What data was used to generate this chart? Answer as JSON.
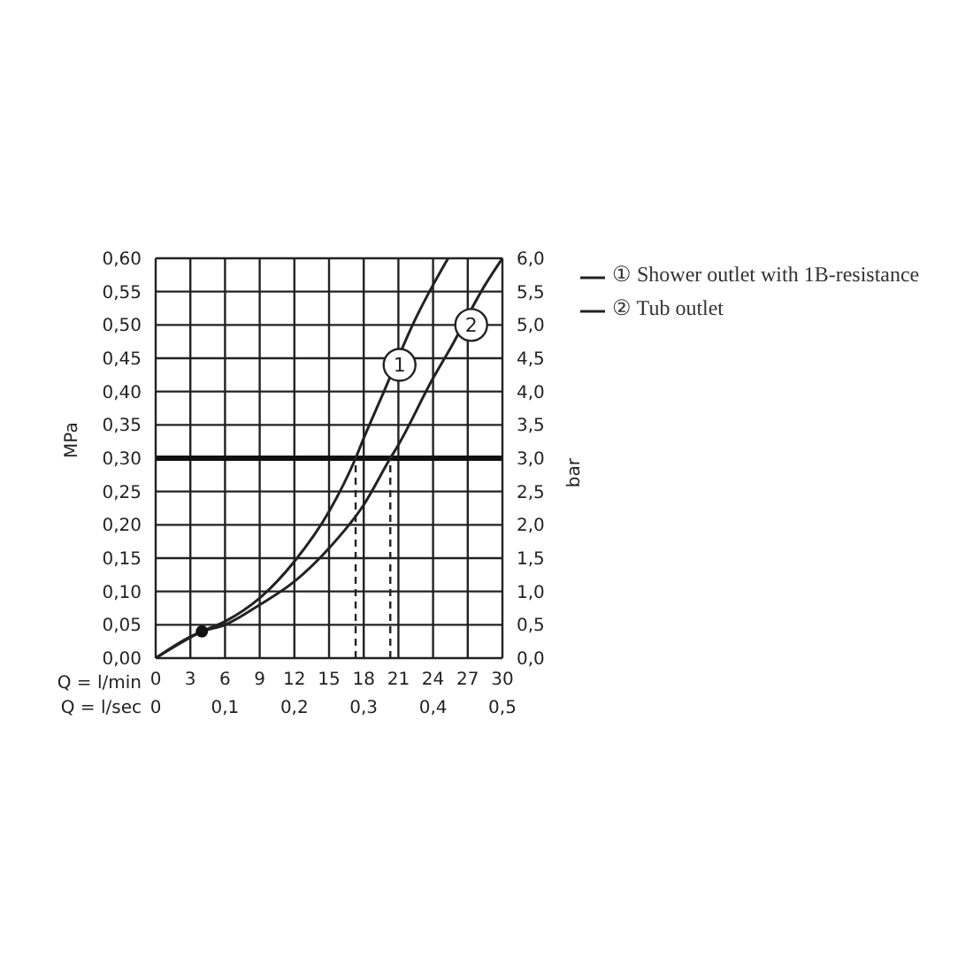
{
  "chart_data": {
    "type": "line",
    "xlabel": "Q = l/min",
    "ylabel": "MPa",
    "y2label": "bar",
    "x2label": "Q = l/sec",
    "xlim": [
      0,
      30
    ],
    "xticks": [
      0,
      3,
      6,
      9,
      12,
      15,
      18,
      21,
      24,
      27,
      30
    ],
    "x2lim": [
      0,
      0.5
    ],
    "x2ticks": [
      0,
      {
        "value": 0.1,
        "label": "0,1"
      },
      {
        "value": 0.2,
        "label": "0,2"
      },
      {
        "value": 0.3,
        "label": "0,3"
      },
      {
        "value": 0.4,
        "label": "0,4"
      },
      {
        "value": 0.5,
        "label": "0,5"
      }
    ],
    "ylim": [
      0,
      0.6
    ],
    "yticks": [
      {
        "value": 0,
        "label": "0,00"
      },
      {
        "value": 0.05,
        "label": "0,05"
      },
      {
        "value": 0.1,
        "label": "0,10"
      },
      {
        "value": 0.15,
        "label": "0,15"
      },
      {
        "value": 0.2,
        "label": "0,20"
      },
      {
        "value": 0.25,
        "label": "0,25"
      },
      {
        "value": 0.3,
        "label": "0,30"
      },
      {
        "value": 0.35,
        "label": "0,35"
      },
      {
        "value": 0.4,
        "label": "0,40"
      },
      {
        "value": 0.45,
        "label": "0,45"
      },
      {
        "value": 0.5,
        "label": "0,50"
      },
      {
        "value": 0.55,
        "label": "0,55"
      },
      {
        "value": 0.6,
        "label": "0,60"
      }
    ],
    "y2lim": [
      0,
      6
    ],
    "y2ticks": [
      {
        "value": 0,
        "label": "0,0"
      },
      {
        "value": 0.5,
        "label": "0,5"
      },
      {
        "value": 1,
        "label": "1,0"
      },
      {
        "value": 1.5,
        "label": "1,5"
      },
      {
        "value": 2,
        "label": "2,0"
      },
      {
        "value": 2.5,
        "label": "2,5"
      },
      {
        "value": 3,
        "label": "3,0"
      },
      {
        "value": 3.5,
        "label": "3,5"
      },
      {
        "value": 4,
        "label": "4,0"
      },
      {
        "value": 4.5,
        "label": "4,5"
      },
      {
        "value": 5,
        "label": "5,0"
      },
      {
        "value": 5.5,
        "label": "5,5"
      },
      {
        "value": 6,
        "label": "6,0"
      }
    ],
    "grid": true,
    "legend": "right",
    "marker": "none",
    "line_style": "solid",
    "series": [
      {
        "name": "① Shower outlet with 1B-resistance",
        "color": "#222222",
        "x": [
          0,
          4,
          6,
          9,
          12,
          15,
          17.3,
          18,
          19.5,
          22.5,
          24,
          25.3
        ],
        "values": [
          0,
          0.04,
          0.055,
          0.09,
          0.145,
          0.22,
          0.3,
          0.33,
          0.39,
          0.51,
          0.56,
          0.6
        ]
      },
      {
        "name": "② Tub outlet",
        "color": "#222222",
        "x": [
          0,
          4,
          6,
          9,
          12,
          15,
          18,
          20.3,
          21,
          24,
          25.5,
          28.5,
          30
        ],
        "values": [
          0,
          0.04,
          0.05,
          0.08,
          0.115,
          0.165,
          0.23,
          0.3,
          0.32,
          0.42,
          0.465,
          0.56,
          0.6
        ]
      },
      {
        "type": "scatter",
        "color": "#111111",
        "marker": "circle",
        "x": [
          4
        ],
        "values": [
          0.04
        ]
      }
    ],
    "ref_lines": [
      {
        "axis": "y",
        "value": 0.3,
        "color": "#111111"
      },
      {
        "axis": "x",
        "value": 17.3,
        "line_style": "dashed",
        "color": "#222222"
      },
      {
        "axis": "x",
        "value": 20.3,
        "line_style": "dashed",
        "color": "#222222"
      }
    ],
    "annotations": [
      {
        "text": "1",
        "x": 21.1,
        "y": 0.44
      },
      {
        "text": "2",
        "x": 27.3,
        "y": 0.5
      }
    ]
  }
}
